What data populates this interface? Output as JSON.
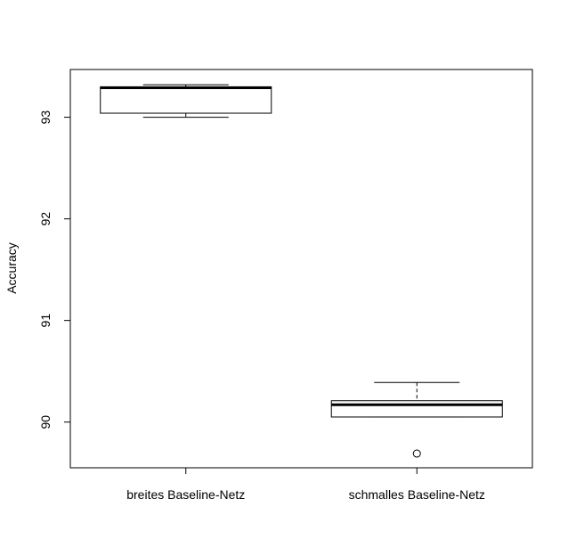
{
  "chart_data": {
    "type": "box",
    "title": "",
    "xlabel": "",
    "ylabel": "Accuracy",
    "ylim": [
      89.55,
      93.47
    ],
    "yticks": [
      "90",
      "91",
      "92",
      "93"
    ],
    "grid": false,
    "categories": [
      "breites Baseline-Netz",
      "schmalles Baseline-Netz"
    ],
    "boxes": [
      {
        "category": "breites Baseline-Netz",
        "whisker_low": 93.0,
        "q1": 93.04,
        "median": 93.29,
        "q3": 93.3,
        "whisker_high": 93.32,
        "outliers": []
      },
      {
        "category": "schmalles Baseline-Netz",
        "whisker_low": 90.05,
        "q1": 90.05,
        "median": 90.17,
        "q3": 90.21,
        "whisker_high": 90.39,
        "outliers": [
          89.69
        ]
      }
    ]
  }
}
